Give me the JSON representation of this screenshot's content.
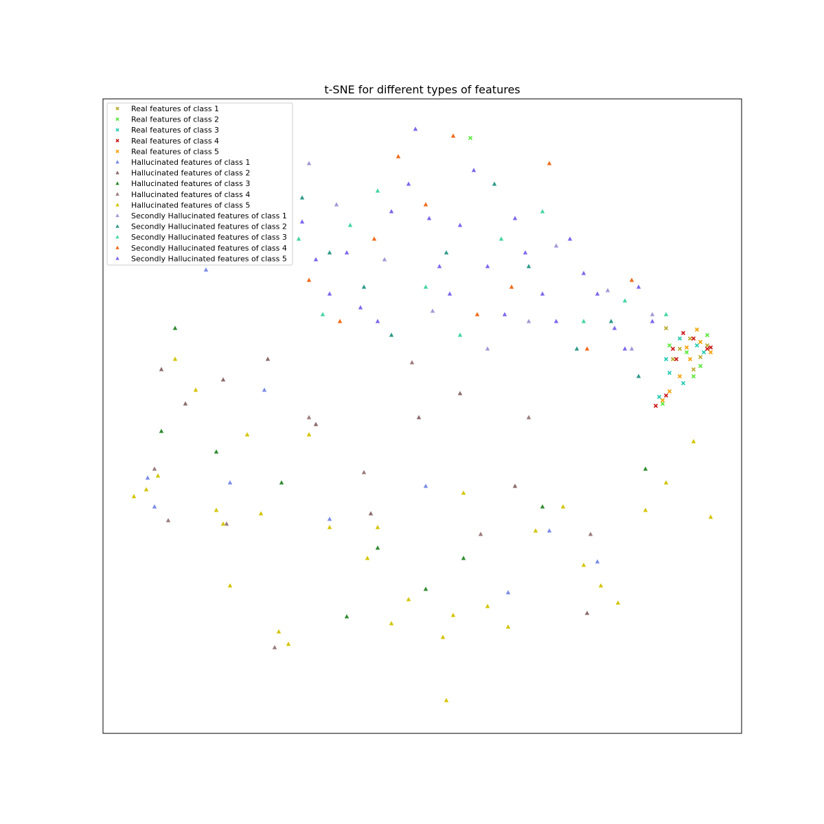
{
  "chart_data": {
    "type": "scatter",
    "title": "t-SNE for different types of features",
    "xlabel": "",
    "ylabel": "",
    "xlim": [
      0,
      930
    ],
    "ylim": [
      0,
      924
    ],
    "axes_ticks": "none",
    "grid": false,
    "legend_position": "upper-left",
    "colors": {
      "real_1": "#b8a82a",
      "real_2": "#59e83a",
      "real_3": "#20c9b0",
      "real_4": "#cc1414",
      "real_5": "#f5a000",
      "hall_1": "#7a8be8",
      "hall_2": "#8a6a6a",
      "hall_3": "#2e8b2e",
      "hall_4": "#9a7a7a",
      "hall_5": "#d4c400",
      "sec_1": "#a09ad6",
      "sec_2": "#2f9a8a",
      "sec_3": "#44d6a0",
      "sec_4": "#f26a1a",
      "sec_5": "#7b68ee"
    },
    "series": [
      {
        "name": "Real features of class 1",
        "marker": "x",
        "color": "#b8a82a",
        "points": [
          [
            820,
            590
          ],
          [
            840,
            560
          ],
          [
            855,
            575
          ],
          [
            830,
            545
          ],
          [
            860,
            530
          ],
          [
            880,
            565
          ],
          [
            870,
            548
          ]
        ]
      },
      {
        "name": "Real features of class 2",
        "marker": "x",
        "color": "#59e83a",
        "points": [
          [
            535,
            867
          ],
          [
            825,
            565
          ],
          [
            860,
            520
          ],
          [
            880,
            580
          ],
          [
            815,
            480
          ],
          [
            850,
            555
          ],
          [
            870,
            535
          ]
        ]
      },
      {
        "name": "Real features of class 3",
        "marker": "x",
        "color": "#20c9b0",
        "points": [
          [
            810,
            490
          ],
          [
            825,
            525
          ],
          [
            845,
            510
          ],
          [
            865,
            565
          ],
          [
            820,
            545
          ],
          [
            875,
            555
          ],
          [
            840,
            575
          ]
        ]
      },
      {
        "name": "Real features of class 4",
        "marker": "x",
        "color": "#cc1414",
        "points": [
          [
            805,
            477
          ],
          [
            820,
            492
          ],
          [
            830,
            560
          ],
          [
            845,
            583
          ],
          [
            860,
            575
          ],
          [
            880,
            560
          ],
          [
            885,
            562
          ],
          [
            835,
            545
          ]
        ]
      },
      {
        "name": "Real features of class 5",
        "marker": "x",
        "color": "#f5a000",
        "points": [
          [
            815,
            485
          ],
          [
            825,
            498
          ],
          [
            840,
            520
          ],
          [
            855,
            545
          ],
          [
            870,
            570
          ],
          [
            885,
            555
          ],
          [
            865,
            588
          ],
          [
            850,
            562
          ]
        ]
      },
      {
        "name": "Hallucinated features of class 1",
        "marker": "^",
        "color": "#7a8be8",
        "points": [
          [
            65,
            372
          ],
          [
            75,
            330
          ],
          [
            150,
            675
          ],
          [
            185,
            365
          ],
          [
            235,
            500
          ],
          [
            330,
            312
          ],
          [
            470,
            360
          ],
          [
            590,
            205
          ],
          [
            650,
            295
          ],
          [
            720,
            250
          ]
        ]
      },
      {
        "name": "Hallucinated features of class 2",
        "marker": "^",
        "color": "#8a6a6a",
        "points": [
          [
            85,
            530
          ],
          [
            120,
            480
          ],
          [
            175,
            515
          ],
          [
            240,
            545
          ],
          [
            310,
            450
          ],
          [
            390,
            320
          ],
          [
            460,
            460
          ],
          [
            520,
            495
          ],
          [
            600,
            360
          ],
          [
            705,
            175
          ]
        ]
      },
      {
        "name": "Hallucinated features of class 3",
        "marker": "^",
        "color": "#2e8b2e",
        "points": [
          [
            85,
            440
          ],
          [
            105,
            590
          ],
          [
            165,
            410
          ],
          [
            260,
            365
          ],
          [
            355,
            170
          ],
          [
            400,
            270
          ],
          [
            470,
            210
          ],
          [
            525,
            255
          ],
          [
            640,
            330
          ],
          [
            790,
            385
          ]
        ]
      },
      {
        "name": "Hallucinated features of class 4",
        "marker": "^",
        "color": "#9a7a7a",
        "points": [
          [
            75,
            385
          ],
          [
            95,
            310
          ],
          [
            180,
            305
          ],
          [
            250,
            125
          ],
          [
            300,
            460
          ],
          [
            380,
            380
          ],
          [
            450,
            540
          ],
          [
            550,
            290
          ],
          [
            620,
            460
          ],
          [
            710,
            290
          ]
        ]
      },
      {
        "name": "Hallucinated features of class 5",
        "marker": "^",
        "color": "#d4c400",
        "points": [
          [
            45,
            345
          ],
          [
            63,
            355
          ],
          [
            80,
            375
          ],
          [
            105,
            545
          ],
          [
            135,
            500
          ],
          [
            165,
            325
          ],
          [
            175,
            305
          ],
          [
            185,
            215
          ],
          [
            210,
            435
          ],
          [
            230,
            320
          ],
          [
            256,
            148
          ],
          [
            270,
            130
          ],
          [
            300,
            435
          ],
          [
            330,
            300
          ],
          [
            385,
            255
          ],
          [
            400,
            300
          ],
          [
            420,
            160
          ],
          [
            445,
            195
          ],
          [
            500,
            48
          ],
          [
            495,
            140
          ],
          [
            510,
            172
          ],
          [
            525,
            350
          ],
          [
            560,
            185
          ],
          [
            590,
            155
          ],
          [
            630,
            295
          ],
          [
            670,
            330
          ],
          [
            700,
            245
          ],
          [
            725,
            215
          ],
          [
            750,
            190
          ],
          [
            790,
            325
          ],
          [
            820,
            365
          ],
          [
            860,
            425
          ],
          [
            885,
            315
          ]
        ]
      },
      {
        "name": "Secondly Hallucinated features of class 1",
        "marker": "^",
        "color": "#a09ad6",
        "points": [
          [
            300,
            830
          ],
          [
            340,
            770
          ],
          [
            410,
            690
          ],
          [
            480,
            615
          ],
          [
            560,
            560
          ],
          [
            620,
            600
          ],
          [
            660,
            710
          ],
          [
            735,
            645
          ],
          [
            770,
            560
          ],
          [
            800,
            610
          ]
        ]
      },
      {
        "name": "Secondly Hallucinated features of class 2",
        "marker": "^",
        "color": "#2f9a8a",
        "points": [
          [
            290,
            780
          ],
          [
            330,
            700
          ],
          [
            380,
            650
          ],
          [
            420,
            580
          ],
          [
            500,
            700
          ],
          [
            570,
            800
          ],
          [
            620,
            680
          ],
          [
            690,
            560
          ],
          [
            740,
            600
          ],
          [
            780,
            520
          ]
        ]
      },
      {
        "name": "Secondly Hallucinated features of class 3",
        "marker": "^",
        "color": "#44d6a0",
        "points": [
          [
            285,
            720
          ],
          [
            320,
            610
          ],
          [
            360,
            740
          ],
          [
            400,
            790
          ],
          [
            470,
            650
          ],
          [
            520,
            580
          ],
          [
            580,
            720
          ],
          [
            640,
            760
          ],
          [
            700,
            600
          ],
          [
            760,
            630
          ],
          [
            820,
            610
          ]
        ]
      },
      {
        "name": "Secondly Hallucinated features of class 4",
        "marker": "^",
        "color": "#f26a1a",
        "points": [
          [
            300,
            660
          ],
          [
            345,
            600
          ],
          [
            395,
            720
          ],
          [
            430,
            840
          ],
          [
            470,
            770
          ],
          [
            510,
            870
          ],
          [
            545,
            610
          ],
          [
            595,
            650
          ],
          [
            650,
            830
          ],
          [
            705,
            560
          ],
          [
            770,
            660
          ]
        ]
      },
      {
        "name": "Secondly Hallucinated features of class 5",
        "marker": "^",
        "color": "#7b68ee",
        "points": [
          [
            290,
            745
          ],
          [
            310,
            690
          ],
          [
            330,
            640
          ],
          [
            355,
            700
          ],
          [
            375,
            620
          ],
          [
            400,
            600
          ],
          [
            420,
            760
          ],
          [
            445,
            800
          ],
          [
            455,
            880
          ],
          [
            475,
            750
          ],
          [
            490,
            680
          ],
          [
            505,
            640
          ],
          [
            520,
            740
          ],
          [
            540,
            820
          ],
          [
            560,
            680
          ],
          [
            585,
            610
          ],
          [
            600,
            750
          ],
          [
            615,
            700
          ],
          [
            640,
            640
          ],
          [
            660,
            600
          ],
          [
            680,
            720
          ],
          [
            700,
            670
          ],
          [
            720,
            640
          ],
          [
            745,
            590
          ],
          [
            760,
            560
          ],
          [
            780,
            650
          ],
          [
            800,
            600
          ]
        ]
      }
    ]
  }
}
